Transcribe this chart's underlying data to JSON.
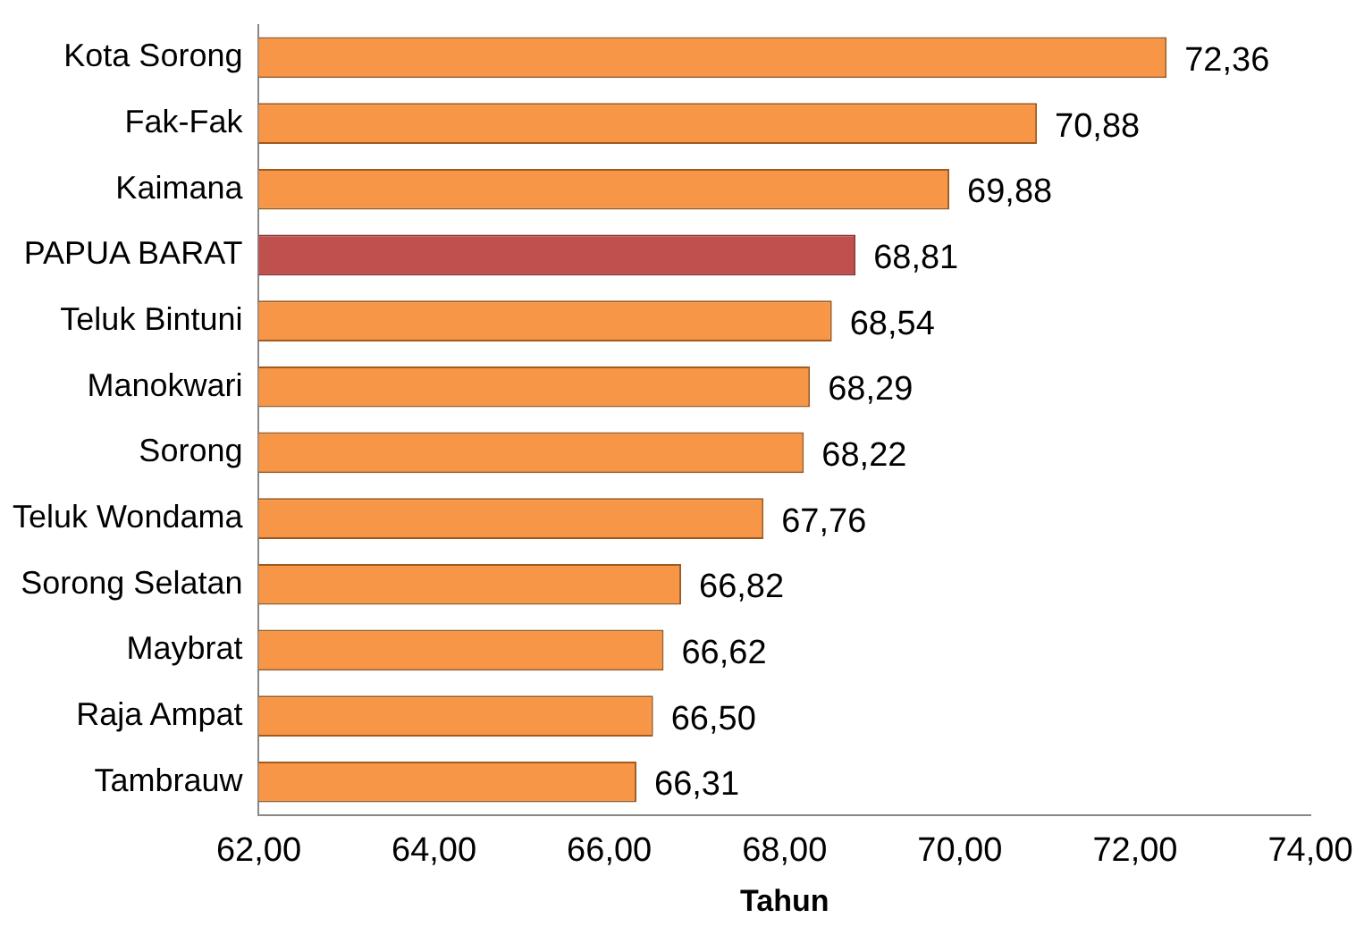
{
  "chart_data": {
    "type": "bar",
    "orientation": "horizontal",
    "xlabel": "Tahun",
    "categories": [
      "Kota Sorong",
      "Fak-Fak",
      "Kaimana",
      "PAPUA BARAT",
      "Teluk Bintuni",
      "Manokwari",
      "Sorong",
      "Teluk Wondama",
      "Sorong Selatan",
      "Maybrat",
      "Raja Ampat",
      "Tambrauw"
    ],
    "values": [
      72.36,
      70.88,
      69.88,
      68.81,
      68.54,
      68.29,
      68.22,
      67.76,
      66.82,
      66.62,
      66.5,
      66.31
    ],
    "colors": [
      "#f79646",
      "#f79646",
      "#f79646",
      "#c0504d",
      "#f79646",
      "#f79646",
      "#f79646",
      "#f79646",
      "#f79646",
      "#f79646",
      "#f79646",
      "#f79646"
    ],
    "value_labels": [
      "72,36",
      "70,88",
      "69,88",
      "68,81",
      "68,54",
      "68,29",
      "68,22",
      "67,76",
      "66,82",
      "66,62",
      "66,50",
      "66,31"
    ],
    "xlim": [
      62,
      74
    ],
    "xticks": [
      {
        "value": 62,
        "label": "62,00"
      },
      {
        "value": 64,
        "label": "64,00"
      },
      {
        "value": 66,
        "label": "66,00"
      },
      {
        "value": 68,
        "label": "68,00"
      },
      {
        "value": 70,
        "label": "70,00"
      },
      {
        "value": 72,
        "label": "72,00"
      },
      {
        "value": 74,
        "label": "74,00"
      }
    ],
    "grid": false,
    "legend": false
  }
}
